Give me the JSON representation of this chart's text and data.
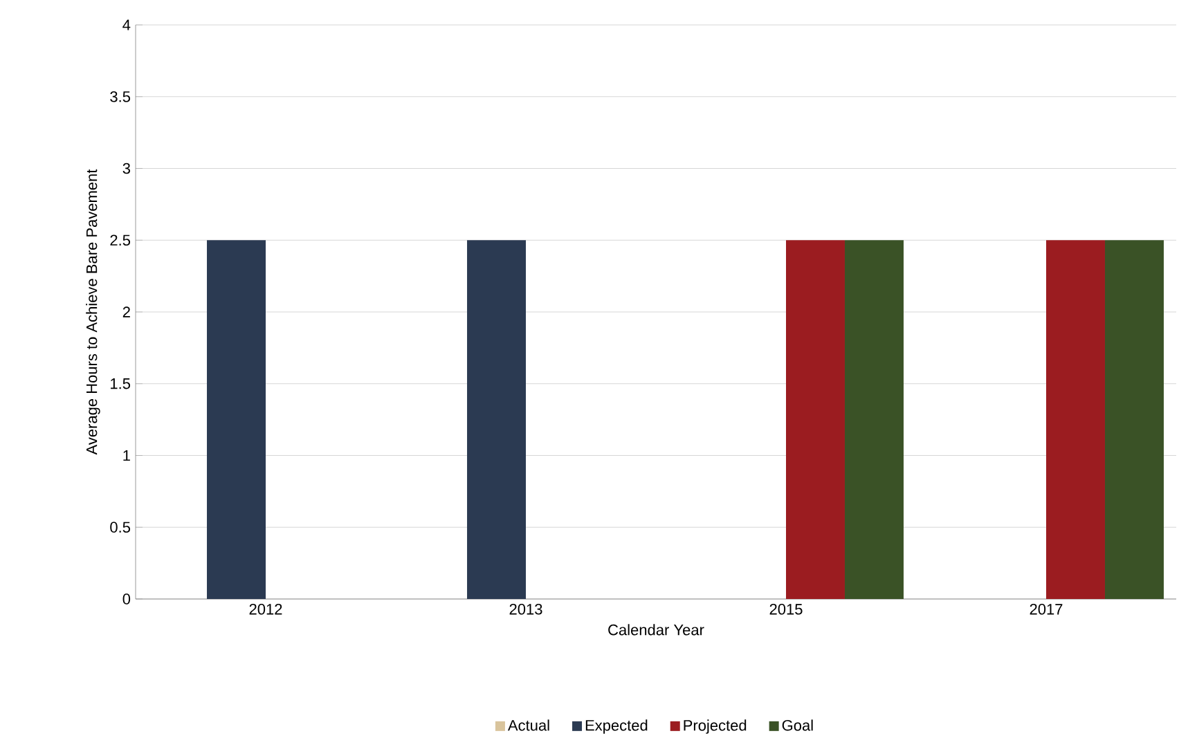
{
  "chart_data": {
    "type": "bar",
    "xlabel": "Calendar Year",
    "ylabel": "Average Hours to Achieve Bare Pavement",
    "categories": [
      "2012",
      "2013",
      "2015",
      "2017"
    ],
    "series": [
      {
        "name": "Actual",
        "color": "#d9c49c",
        "values": [
          null,
          null,
          null,
          null
        ]
      },
      {
        "name": "Expected",
        "color": "#2b3a52",
        "values": [
          2.5,
          2.5,
          null,
          null
        ]
      },
      {
        "name": "Projected",
        "color": "#9b1c20",
        "values": [
          null,
          null,
          2.5,
          2.5
        ]
      },
      {
        "name": "Goal",
        "color": "#3a5226",
        "values": [
          null,
          null,
          2.5,
          2.5
        ]
      }
    ],
    "ylim": [
      0,
      4
    ],
    "yticks": [
      0,
      0.5,
      1,
      1.5,
      2,
      2.5,
      3,
      3.5,
      4
    ],
    "grid": "y",
    "legend": "bottom"
  }
}
